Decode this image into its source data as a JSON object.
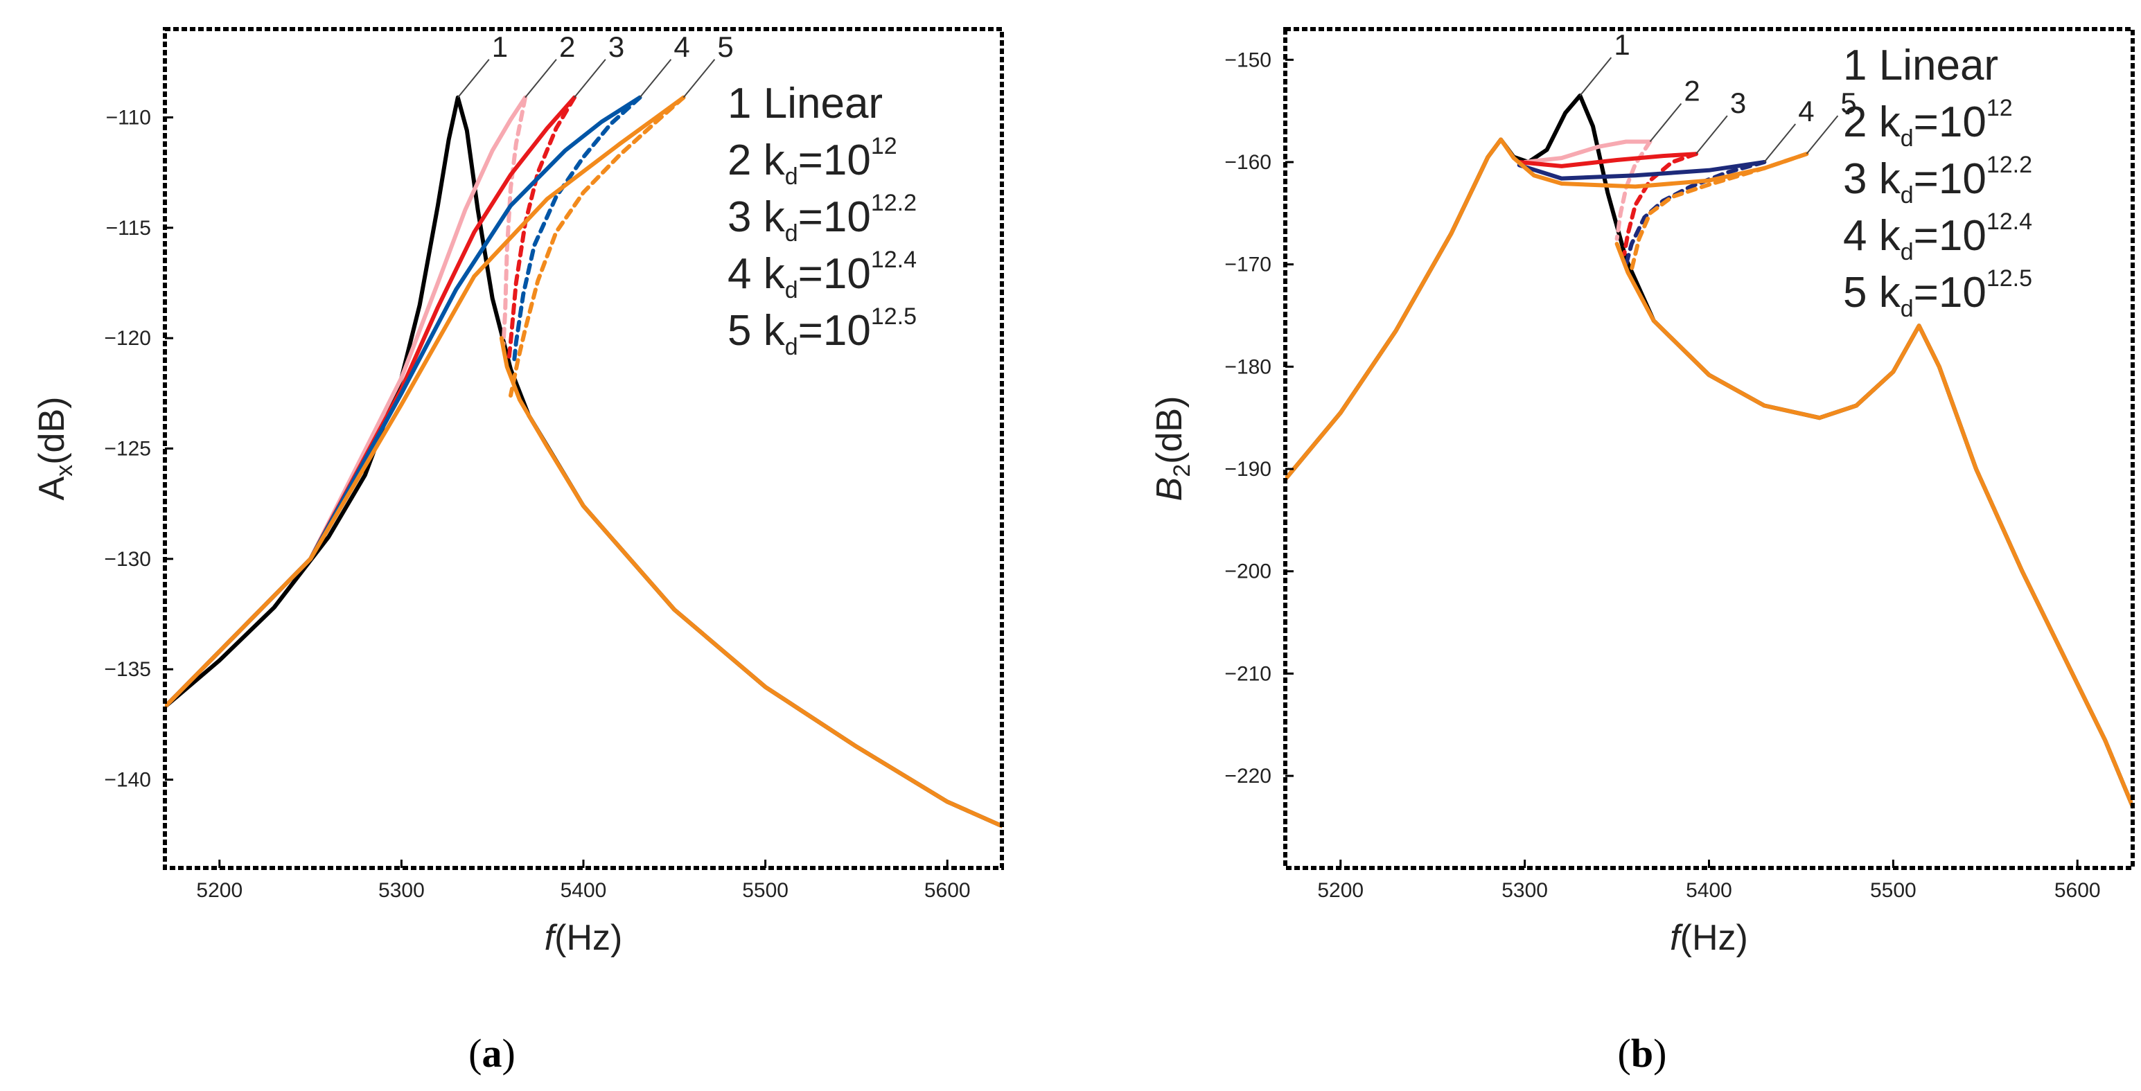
{
  "chart_data": [
    {
      "type": "line",
      "panel": "(a)",
      "panel_letter": "a",
      "xlabel_italic": "f",
      "xlabel_rest": "(Hz)",
      "ylabel_main": "A",
      "ylabel_sub": "x",
      "ylabel_rest": "(dB)",
      "xlim": [
        5170,
        5630
      ],
      "ylim": [
        -144,
        -106
      ],
      "xticks": [
        5200,
        5300,
        5400,
        5500,
        5600
      ],
      "yticks": [
        -110,
        -115,
        -120,
        -125,
        -130,
        -135,
        -140
      ],
      "ytick_labels": [
        "−110",
        "−115",
        "−120",
        "−125",
        "−130",
        "−135",
        "−140"
      ],
      "legend": [
        {
          "num": "1",
          "text": "Linear",
          "sup": ""
        },
        {
          "num": "2",
          "text": "k",
          "sub": "d",
          "eq": "=10",
          "sup": "12"
        },
        {
          "num": "3",
          "text": "k",
          "sub": "d",
          "eq": "=10",
          "sup": "12.2"
        },
        {
          "num": "4",
          "text": "k",
          "sub": "d",
          "eq": "=10",
          "sup": "12.4"
        },
        {
          "num": "5",
          "text": "k",
          "sub": "d",
          "eq": "=10",
          "sup": "12.5"
        }
      ],
      "curve_labels": [
        {
          "text": "1",
          "at": [
            5331,
            -109.1
          ]
        },
        {
          "text": "2",
          "at": [
            5368,
            -109.1
          ]
        },
        {
          "text": "3",
          "at": [
            5395,
            -109.1
          ]
        },
        {
          "text": "4",
          "at": [
            5431,
            -109.1
          ]
        },
        {
          "text": "5",
          "at": [
            5455,
            -109.1
          ]
        }
      ],
      "series": [
        {
          "color": "#000000",
          "style": "solid",
          "points": [
            [
              5170,
              -136.7
            ],
            [
              5200,
              -134.6
            ],
            [
              5230,
              -132.2
            ],
            [
              5260,
              -129.0
            ],
            [
              5280,
              -126.2
            ],
            [
              5300,
              -121.8
            ],
            [
              5310,
              -118.5
            ],
            [
              5320,
              -114.0
            ],
            [
              5326,
              -111.0
            ],
            [
              5331,
              -109.1
            ],
            [
              5336,
              -110.6
            ],
            [
              5342,
              -114.2
            ],
            [
              5350,
              -118.2
            ],
            [
              5360,
              -121.4
            ],
            [
              5370,
              -123.5
            ],
            [
              5400,
              -127.6
            ],
            [
              5450,
              -132.3
            ],
            [
              5500,
              -135.8
            ],
            [
              5550,
              -138.5
            ],
            [
              5600,
              -141.0
            ],
            [
              5630,
              -142.1
            ]
          ]
        },
        {
          "color": "#f7a9b1",
          "style": "solid",
          "points": [
            [
              5170,
              -136.7
            ],
            [
              5250,
              -130.0
            ],
            [
              5300,
              -121.8
            ],
            [
              5320,
              -117.5
            ],
            [
              5335,
              -114.2
            ],
            [
              5350,
              -111.5
            ],
            [
              5360,
              -110.1
            ],
            [
              5368,
              -109.1
            ]
          ]
        },
        {
          "color": "#f7a9b1",
          "style": "dashed",
          "points": [
            [
              5368,
              -109.1
            ],
            [
              5363,
              -111.2
            ],
            [
              5360,
              -113.2
            ],
            [
              5358,
              -116.0
            ],
            [
              5357,
              -118.8
            ],
            [
              5356,
              -120.3
            ]
          ]
        },
        {
          "color": "#e8191b",
          "style": "solid",
          "points": [
            [
              5170,
              -136.7
            ],
            [
              5250,
              -130.0
            ],
            [
              5300,
              -122.3
            ],
            [
              5320,
              -118.6
            ],
            [
              5340,
              -115.2
            ],
            [
              5360,
              -112.6
            ],
            [
              5380,
              -110.5
            ],
            [
              5395,
              -109.1
            ]
          ]
        },
        {
          "color": "#e8191b",
          "style": "dashed",
          "points": [
            [
              5395,
              -109.1
            ],
            [
              5385,
              -110.5
            ],
            [
              5375,
              -112.5
            ],
            [
              5368,
              -114.8
            ],
            [
              5363,
              -117.5
            ],
            [
              5360,
              -120.2
            ],
            [
              5359,
              -121.0
            ]
          ]
        },
        {
          "color": "#0055a6",
          "style": "solid",
          "points": [
            [
              5170,
              -136.7
            ],
            [
              5250,
              -130.0
            ],
            [
              5300,
              -122.5
            ],
            [
              5330,
              -117.8
            ],
            [
              5360,
              -114.0
            ],
            [
              5390,
              -111.5
            ],
            [
              5410,
              -110.2
            ],
            [
              5431,
              -109.1
            ]
          ]
        },
        {
          "color": "#0055a6",
          "style": "dashed",
          "points": [
            [
              5431,
              -109.1
            ],
            [
              5415,
              -110.3
            ],
            [
              5400,
              -111.8
            ],
            [
              5385,
              -113.6
            ],
            [
              5373,
              -115.8
            ],
            [
              5367,
              -118.0
            ],
            [
              5363,
              -120.2
            ],
            [
              5362,
              -121.0
            ]
          ]
        },
        {
          "color": "#f28a1c",
          "style": "solid",
          "points": [
            [
              5170,
              -136.7
            ],
            [
              5250,
              -130.0
            ],
            [
              5300,
              -123.0
            ],
            [
              5340,
              -117.2
            ],
            [
              5380,
              -113.7
            ],
            [
              5420,
              -111.2
            ],
            [
              5440,
              -110.0
            ],
            [
              5455,
              -109.1
            ]
          ]
        },
        {
          "color": "#f28a1c",
          "style": "dashed",
          "points": [
            [
              5455,
              -109.1
            ],
            [
              5440,
              -110.2
            ],
            [
              5420,
              -111.7
            ],
            [
              5400,
              -113.4
            ],
            [
              5385,
              -115.2
            ],
            [
              5375,
              -117.4
            ],
            [
              5368,
              -119.6
            ],
            [
              5364,
              -121.0
            ],
            [
              5360,
              -122.6
            ]
          ]
        },
        {
          "color": "#f28a1c",
          "style": "solid",
          "points": [
            [
              5355,
              -120.0
            ],
            [
              5358,
              -121.3
            ],
            [
              5365,
              -122.8
            ],
            [
              5380,
              -124.9
            ],
            [
              5400,
              -127.6
            ],
            [
              5450,
              -132.3
            ],
            [
              5500,
              -135.8
            ],
            [
              5550,
              -138.5
            ],
            [
              5600,
              -141.0
            ],
            [
              5630,
              -142.1
            ]
          ]
        }
      ]
    },
    {
      "type": "line",
      "panel": "(b)",
      "panel_letter": "b",
      "xlabel_italic": "f",
      "xlabel_rest": "(Hz)",
      "ylabel_main": "B",
      "ylabel_sub": "2",
      "ylabel_rest": "(dB)",
      "xlim": [
        5170,
        5630
      ],
      "ylim": [
        -229,
        -147
      ],
      "xticks": [
        5200,
        5300,
        5400,
        5500,
        5600
      ],
      "yticks": [
        -150,
        -160,
        -170,
        -180,
        -190,
        -200,
        -210,
        -220
      ],
      "ytick_labels": [
        "−150",
        "−160",
        "−170",
        "−180",
        "−190",
        "−200",
        "−210",
        "−220"
      ],
      "legend": [
        {
          "num": "1",
          "text": "Linear",
          "sup": ""
        },
        {
          "num": "2",
          "text": "k",
          "sub": "d",
          "eq": "=10",
          "sup": "12"
        },
        {
          "num": "3",
          "text": "k",
          "sub": "d",
          "eq": "=10",
          "sup": "12.2"
        },
        {
          "num": "4",
          "text": "k",
          "sub": "d",
          "eq": "=10",
          "sup": "12.4"
        },
        {
          "num": "5",
          "text": "k",
          "sub": "d",
          "eq": "=10",
          "sup": "12.5"
        }
      ],
      "curve_labels": [
        {
          "text": "1",
          "at": [
            5330,
            -153.5
          ]
        },
        {
          "text": "2",
          "at": [
            5368,
            -158.0
          ]
        },
        {
          "text": "3",
          "at": [
            5393,
            -159.2
          ]
        },
        {
          "text": "4",
          "at": [
            5430,
            -160.0
          ]
        },
        {
          "text": "5",
          "at": [
            5453,
            -159.2
          ]
        }
      ],
      "series": [
        {
          "color": "#000000",
          "style": "solid",
          "points": [
            [
              5170,
              -191.0
            ],
            [
              5200,
              -184.5
            ],
            [
              5230,
              -176.5
            ],
            [
              5260,
              -167.0
            ],
            [
              5280,
              -159.5
            ],
            [
              5287,
              -157.8
            ],
            [
              5294,
              -159.5
            ],
            [
              5302,
              -160.0
            ],
            [
              5312,
              -158.8
            ],
            [
              5322,
              -155.2
            ],
            [
              5330,
              -153.5
            ],
            [
              5337,
              -156.5
            ],
            [
              5345,
              -163.0
            ],
            [
              5355,
              -169.5
            ],
            [
              5370,
              -175.5
            ],
            [
              5400,
              -180.8
            ],
            [
              5430,
              -183.8
            ],
            [
              5460,
              -185.0
            ],
            [
              5480,
              -183.8
            ],
            [
              5500,
              -180.5
            ],
            [
              5514,
              -176.0
            ],
            [
              5525,
              -180.0
            ],
            [
              5545,
              -190.0
            ],
            [
              5570,
              -200.0
            ],
            [
              5600,
              -211.0
            ],
            [
              5615,
              -216.5
            ],
            [
              5630,
              -223.0
            ]
          ]
        },
        {
          "color": "#f7a9b1",
          "style": "solid",
          "points": [
            [
              5300,
              -160.0
            ],
            [
              5320,
              -159.6
            ],
            [
              5340,
              -158.5
            ],
            [
              5355,
              -158.0
            ],
            [
              5368,
              -158.0
            ]
          ]
        },
        {
          "color": "#f7a9b1",
          "style": "dashed",
          "points": [
            [
              5368,
              -158.0
            ],
            [
              5360,
              -160.2
            ],
            [
              5355,
              -162.5
            ],
            [
              5352,
              -165.0
            ],
            [
              5350,
              -167.5
            ]
          ]
        },
        {
          "color": "#e8191b",
          "style": "solid",
          "points": [
            [
              5297,
              -160.0
            ],
            [
              5320,
              -160.4
            ],
            [
              5350,
              -159.8
            ],
            [
              5375,
              -159.4
            ],
            [
              5393,
              -159.2
            ]
          ]
        },
        {
          "color": "#e8191b",
          "style": "dashed",
          "points": [
            [
              5393,
              -159.2
            ],
            [
              5380,
              -160.0
            ],
            [
              5368,
              -161.8
            ],
            [
              5360,
              -164.2
            ],
            [
              5356,
              -167.0
            ],
            [
              5354,
              -169.0
            ]
          ]
        },
        {
          "color": "#1d2a7a",
          "style": "solid",
          "points": [
            [
              5297,
              -160.3
            ],
            [
              5320,
              -161.6
            ],
            [
              5360,
              -161.3
            ],
            [
              5400,
              -160.8
            ],
            [
              5430,
              -160.0
            ]
          ]
        },
        {
          "color": "#1d2a7a",
          "style": "dashed",
          "points": [
            [
              5430,
              -160.0
            ],
            [
              5410,
              -161.0
            ],
            [
              5390,
              -162.4
            ],
            [
              5375,
              -163.8
            ],
            [
              5365,
              -165.4
            ],
            [
              5358,
              -168.0
            ],
            [
              5355,
              -170.0
            ]
          ]
        },
        {
          "color": "#f28a1c",
          "style": "solid",
          "points": [
            [
              5170,
              -191.0
            ],
            [
              5200,
              -184.5
            ],
            [
              5230,
              -176.5
            ],
            [
              5260,
              -167.0
            ],
            [
              5280,
              -159.5
            ],
            [
              5287,
              -157.8
            ],
            [
              5294,
              -159.6
            ],
            [
              5305,
              -161.3
            ],
            [
              5320,
              -162.1
            ],
            [
              5360,
              -162.4
            ],
            [
              5400,
              -161.8
            ],
            [
              5430,
              -160.6
            ],
            [
              5453,
              -159.2
            ]
          ]
        },
        {
          "color": "#f28a1c",
          "style": "dashed",
          "points": [
            [
              5453,
              -159.2
            ],
            [
              5430,
              -160.6
            ],
            [
              5400,
              -162.2
            ],
            [
              5380,
              -163.4
            ],
            [
              5368,
              -165.0
            ],
            [
              5362,
              -167.5
            ],
            [
              5358,
              -170.5
            ]
          ]
        },
        {
          "color": "#f28a1c",
          "style": "solid",
          "points": [
            [
              5350,
              -168.0
            ],
            [
              5356,
              -170.8
            ],
            [
              5370,
              -175.5
            ],
            [
              5400,
              -180.8
            ],
            [
              5430,
              -183.8
            ],
            [
              5460,
              -185.0
            ],
            [
              5480,
              -183.8
            ],
            [
              5500,
              -180.5
            ],
            [
              5514,
              -176.0
            ],
            [
              5525,
              -180.0
            ],
            [
              5545,
              -190.0
            ],
            [
              5570,
              -200.0
            ],
            [
              5600,
              -211.0
            ],
            [
              5615,
              -216.5
            ],
            [
              5630,
              -223.0
            ]
          ]
        }
      ]
    }
  ]
}
